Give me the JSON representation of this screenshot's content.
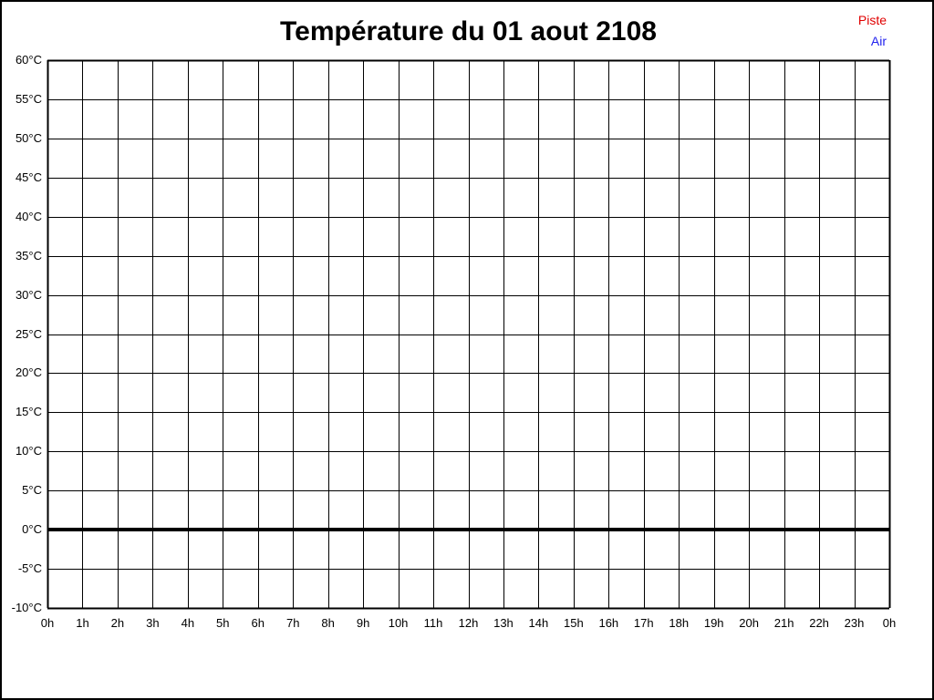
{
  "page": {
    "background_color": "#ffffff",
    "frame_color": "#000000"
  },
  "chart_data": {
    "type": "line",
    "title": "Température du 01 aout 2108",
    "xlabel": "",
    "ylabel": "",
    "grid": true,
    "x_axis": {
      "min": 0,
      "max": 24,
      "step_hours": 1,
      "tick_labels": [
        "0h",
        "1h",
        "2h",
        "3h",
        "4h",
        "5h",
        "6h",
        "7h",
        "8h",
        "9h",
        "10h",
        "11h",
        "12h",
        "13h",
        "14h",
        "15h",
        "16h",
        "17h",
        "18h",
        "19h",
        "20h",
        "21h",
        "22h",
        "23h",
        "0h"
      ]
    },
    "y_axis": {
      "min": -10,
      "max": 60,
      "step": 5,
      "unit": "°C",
      "tick_labels": [
        "60°C",
        "55°C",
        "50°C",
        "45°C",
        "40°C",
        "35°C",
        "30°C",
        "25°C",
        "20°C",
        "15°C",
        "10°C",
        "5°C",
        "0°C",
        "-5°C",
        "-10°C"
      ]
    },
    "zero_line": {
      "value": 0,
      "thick": true,
      "color": "#000000"
    },
    "grid_color": "#000000",
    "series": [
      {
        "name": "Piste",
        "color": "#e00000",
        "values": []
      },
      {
        "name": "Air",
        "color": "#2222ee",
        "values": []
      }
    ]
  },
  "legend": {
    "position": "top-right",
    "items": [
      {
        "label": "Piste",
        "color": "#e00000"
      },
      {
        "label": "Air",
        "color": "#2222ee"
      }
    ]
  }
}
